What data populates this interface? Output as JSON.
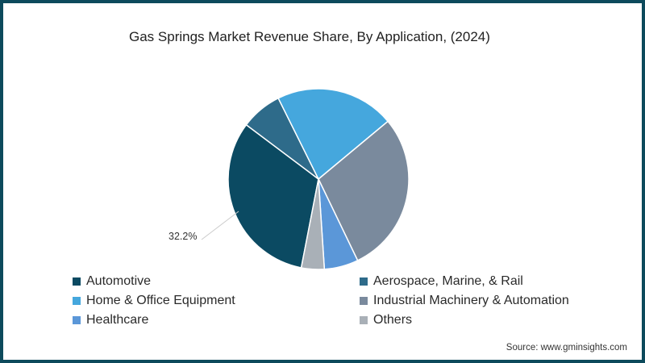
{
  "chart_data": {
    "type": "pie",
    "title": "Gas Springs Market Revenue Share, By Application, (2024)",
    "categories": [
      "Automotive",
      "Aerospace, Marine, & Rail",
      "Home & Office Equipment",
      "Industrial Machinery & Automation",
      "Healthcare",
      "Others"
    ],
    "values": [
      32.2,
      7.4,
      21.3,
      28.9,
      6.1,
      4.1
    ],
    "colors": [
      "#0b4a62",
      "#2e6b8a",
      "#45a7dd",
      "#7a8a9d",
      "#5b97d8",
      "#a9b0b7"
    ],
    "annotations": [
      {
        "category": "Automotive",
        "text": "32.2%"
      }
    ],
    "legend_position": "bottom",
    "source": "Source: www.gminsights.com"
  },
  "header": {
    "title": "Gas Springs Market Revenue Share, By Application, (2024)"
  },
  "legend": {
    "items": [
      {
        "label": "Automotive",
        "color": "#0b4a62"
      },
      {
        "label": "Aerospace, Marine, & Rail",
        "color": "#2e6b8a"
      },
      {
        "label": "Home & Office Equipment",
        "color": "#45a7dd"
      },
      {
        "label": "Industrial Machinery & Automation",
        "color": "#7a8a9d"
      },
      {
        "label": "Healthcare",
        "color": "#5b97d8"
      },
      {
        "label": "Others",
        "color": "#a9b0b7"
      }
    ]
  },
  "annotation": {
    "automotive_label": "32.2%"
  },
  "footer": {
    "source": "Source: www.gminsights.com"
  },
  "theme": {
    "border": "#0d4a5c"
  }
}
